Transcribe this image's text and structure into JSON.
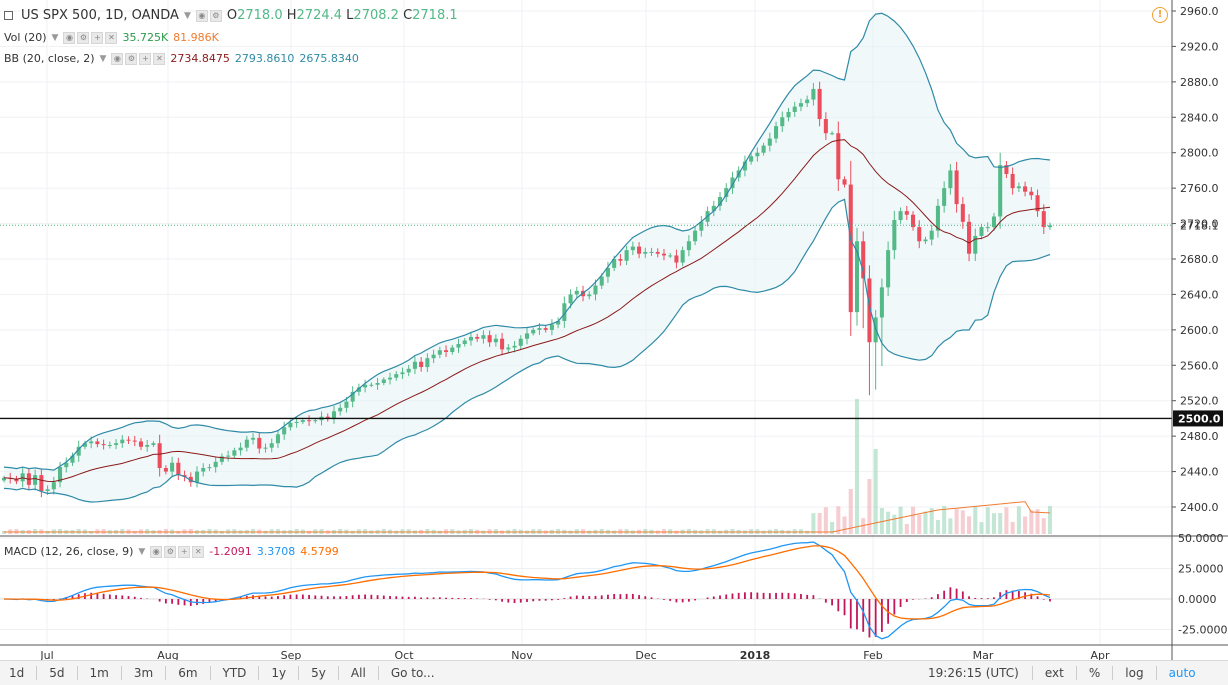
{
  "header": {
    "symbol": "US SPX 500, 1D, OANDA",
    "o_label": "O",
    "o": "2718.0",
    "h_label": "H",
    "h": "2724.4",
    "l_label": "L",
    "l": "2708.2",
    "c_label": "C",
    "c": "2718.1"
  },
  "vol_legend": {
    "name": "Vol (20)",
    "v1": "35.725K",
    "v2": "81.986K"
  },
  "bb_legend": {
    "name": "BB (20, close, 2)",
    "v1": "2734.8475",
    "v2": "2793.8610",
    "v3": "2675.8340"
  },
  "macd_legend": {
    "name": "MACD (12, 26, close, 9)",
    "v1": "-1.2091",
    "v2": "3.3708",
    "v3": "4.5799"
  },
  "price_label": "2718.1",
  "level_label": "2500.0",
  "colors": {
    "up": "#53b987",
    "down": "#eb4d5c",
    "bb": "#2f8aa6",
    "basis": "#8b1a1a",
    "macd": "#2196f3",
    "signal": "#ff6d00",
    "hist": "#c2185b"
  },
  "bottombar": {
    "timeframes": [
      "1d",
      "5d",
      "1m",
      "3m",
      "6m",
      "YTD",
      "1y",
      "5y",
      "All"
    ],
    "goto": "Go to...",
    "time": "19:26:15 (UTC)",
    "ext": "ext",
    "pct": "%",
    "log": "log",
    "auto": "auto"
  },
  "chart_data": {
    "type": "candlestick",
    "title": "US SPX 500, 1D, OANDA",
    "price_axis": {
      "ticks": [
        2400,
        2440,
        2480,
        2520,
        2560,
        2600,
        2640,
        2680,
        2720,
        2760,
        2800,
        2840,
        2880,
        2920,
        2960
      ]
    },
    "macd_axis": {
      "ticks": [
        50,
        25,
        0,
        -25
      ],
      "tick_labels": [
        "50.0000",
        "25.0000",
        "0.0000",
        "-25.0000"
      ]
    },
    "x_axis_labels": [
      "Jul",
      "Aug",
      "Sep",
      "Oct",
      "Nov",
      "Dec",
      "2018",
      "Feb",
      "Mar",
      "Apr"
    ],
    "last_price": 2718.1,
    "horizontal_level": 2500.0,
    "close_series": [
      2433,
      2432,
      2429,
      2438,
      2425,
      2436,
      2418,
      2420,
      2428,
      2445,
      2450,
      2458,
      2468,
      2472,
      2474,
      2471,
      2470,
      2470,
      2472,
      2476,
      2475,
      2474,
      2468,
      2470,
      2472,
      2444,
      2440,
      2450,
      2436,
      2434,
      2428,
      2440,
      2444,
      2445,
      2451,
      2457,
      2458,
      2464,
      2467,
      2476,
      2478,
      2466,
      2467,
      2472,
      2482,
      2490,
      2495,
      2496,
      2498,
      2497,
      2498,
      2502,
      2500,
      2508,
      2512,
      2519,
      2530,
      2535,
      2538,
      2538,
      2540,
      2544,
      2546,
      2550,
      2552,
      2556,
      2564,
      2558,
      2568,
      2572,
      2577,
      2575,
      2580,
      2584,
      2588,
      2592,
      2590,
      2594,
      2586,
      2590,
      2578,
      2580,
      2582,
      2590,
      2596,
      2600,
      2602,
      2600,
      2606,
      2610,
      2630,
      2640,
      2644,
      2638,
      2640,
      2650,
      2660,
      2670,
      2680,
      2678,
      2690,
      2694,
      2686,
      2688,
      2688,
      2686,
      2684,
      2684,
      2676,
      2690,
      2700,
      2712,
      2722,
      2734,
      2740,
      2750,
      2760,
      2772,
      2780,
      2790,
      2796,
      2800,
      2808,
      2816,
      2830,
      2840,
      2846,
      2852,
      2856,
      2860,
      2872,
      2838,
      2822,
      2822,
      2770,
      2764,
      2620,
      2700,
      2658,
      2586,
      2614,
      2648,
      2690,
      2724,
      2734,
      2730,
      2716,
      2700,
      2702,
      2712,
      2740,
      2760,
      2780,
      2742,
      2722,
      2686,
      2706,
      2716,
      2716,
      2728,
      2786,
      2776,
      2760,
      2762,
      2756,
      2752,
      2734,
      2716,
      2718
    ],
    "series": [
      {
        "name": "Price",
        "values_ref": "close_series"
      },
      {
        "name": "Vol (20)",
        "last": "35.725K",
        "ma": "81.986K"
      },
      {
        "name": "BB (20, close, 2)",
        "basis": 2734.8475,
        "upper": 2793.861,
        "lower": 2675.834
      },
      {
        "name": "MACD (12, 26, close, 9)",
        "histogram": -1.2091,
        "macd": 3.3708,
        "signal": 4.5799
      }
    ],
    "grid": true
  }
}
